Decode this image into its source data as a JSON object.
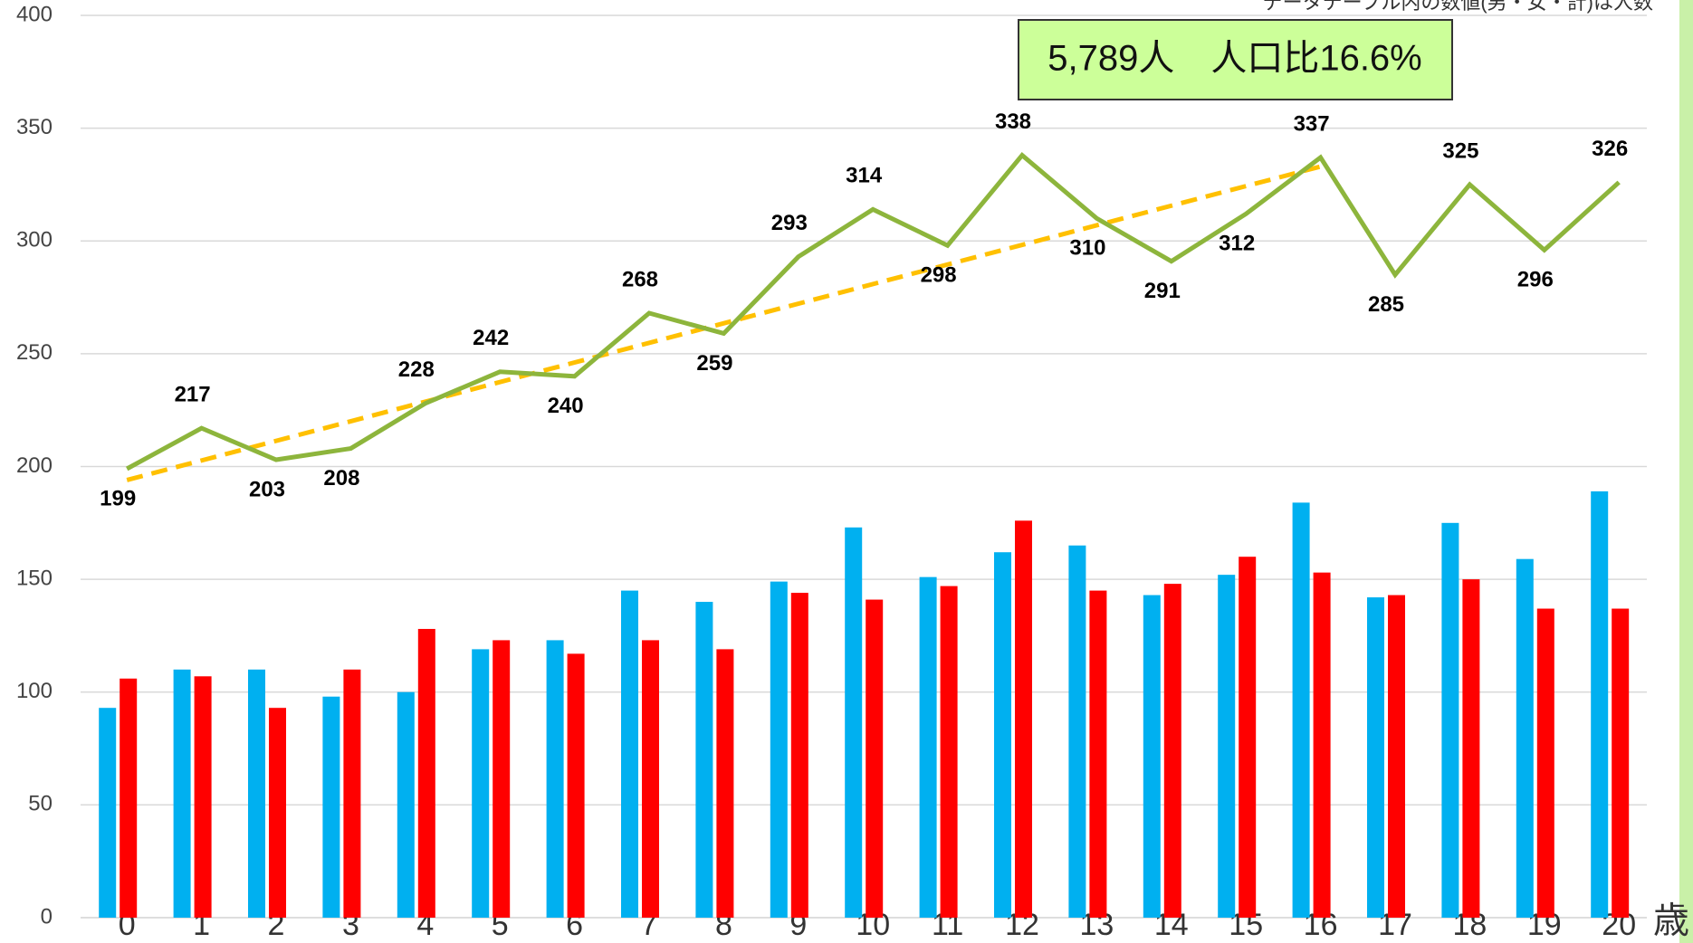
{
  "chart_data": {
    "type": "bar_line",
    "note": "データテーブル内の数値(男・女・計)は人数",
    "annotation": "5,789人　人口比16.6%",
    "x_unit": "歳",
    "categories": [
      "0",
      "1",
      "2",
      "3",
      "4",
      "5",
      "6",
      "7",
      "8",
      "9",
      "10",
      "11",
      "12",
      "13",
      "14",
      "15",
      "16",
      "17",
      "18",
      "19",
      "20"
    ],
    "series": [
      {
        "color": "#00b0f0",
        "kind": "bar",
        "values": [
          93,
          110,
          110,
          98,
          100,
          119,
          123,
          145,
          140,
          149,
          173,
          151,
          162,
          165,
          143,
          152,
          184,
          142,
          175,
          159,
          189
        ]
      },
      {
        "color": "#ff0000",
        "kind": "bar",
        "values": [
          106,
          107,
          93,
          110,
          128,
          123,
          117,
          123,
          119,
          144,
          141,
          147,
          176,
          145,
          148,
          160,
          153,
          143,
          150,
          137,
          137
        ]
      },
      {
        "color": "#8db53c",
        "kind": "line",
        "values": [
          199,
          217,
          203,
          208,
          228,
          242,
          240,
          268,
          259,
          293,
          314,
          298,
          338,
          310,
          291,
          312,
          337,
          285,
          325,
          296,
          326
        ]
      }
    ],
    "trendline": {
      "color": "#ffc000",
      "x": [
        0,
        16
      ],
      "values": [
        194,
        333
      ]
    },
    "ylim": [
      0,
      400
    ],
    "yticks": [
      0,
      50,
      100,
      150,
      200,
      250,
      300,
      350,
      400
    ],
    "grid": true
  }
}
